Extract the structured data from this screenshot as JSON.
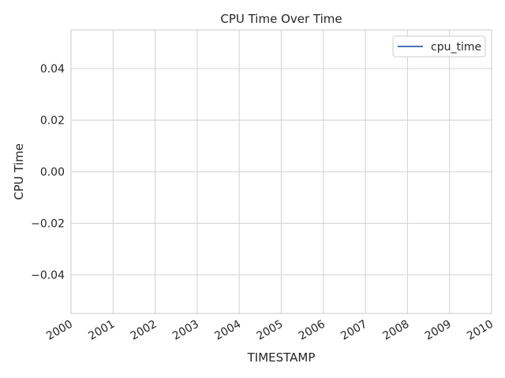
{
  "chart_data": {
    "type": "line",
    "title": "CPU Time Over Time",
    "xlabel": "TIMESTAMP",
    "ylabel": "CPU Time",
    "x_ticks": [
      "2000",
      "2001",
      "2002",
      "2003",
      "2004",
      "2005",
      "2006",
      "2007",
      "2008",
      "2009",
      "2010"
    ],
    "y_ticks": [
      0.04,
      0.02,
      0.0,
      -0.02,
      -0.04
    ],
    "y_tick_labels": [
      "0.04",
      "0.02",
      "0.00",
      "−0.02",
      "−0.04"
    ],
    "xlim": [
      2000,
      2010
    ],
    "ylim": [
      -0.055,
      0.055
    ],
    "grid": true,
    "legend_position": "top-right",
    "series": [
      {
        "name": "cpu_time",
        "color": "#4c72b0",
        "x": [],
        "y": []
      }
    ]
  }
}
